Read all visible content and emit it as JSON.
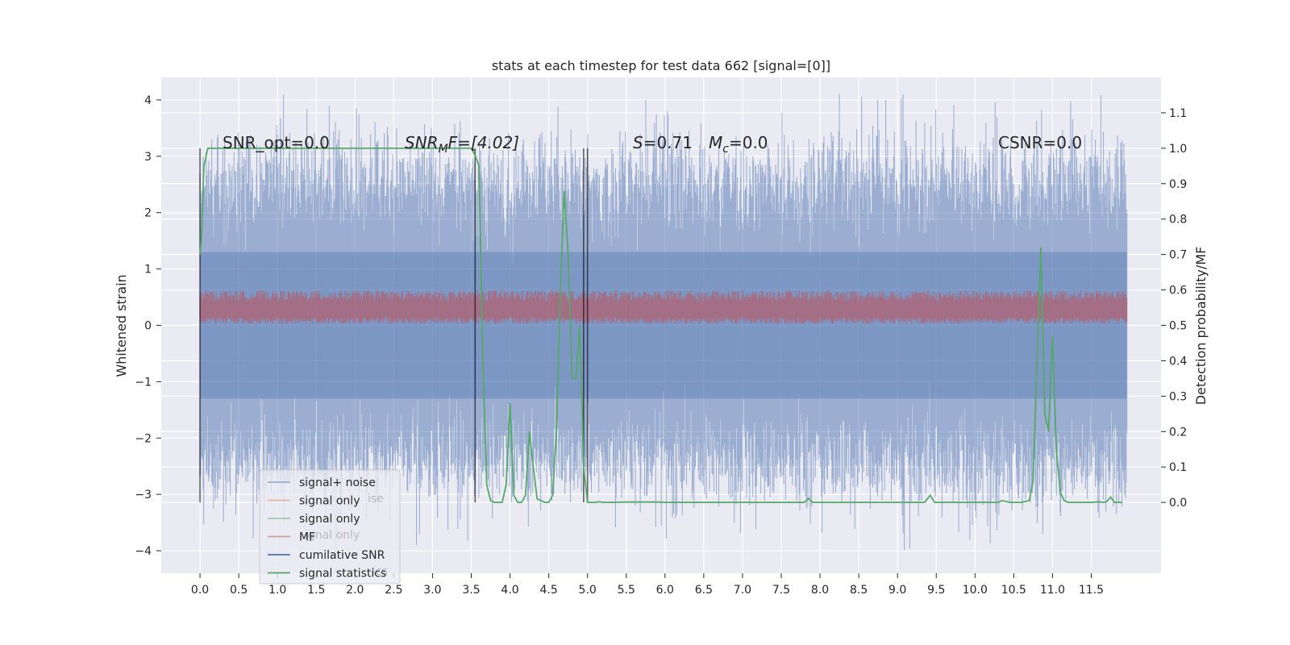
{
  "chart_data": {
    "type": "line",
    "title": "stats at each timestep for test data 662 [signal=[0]]",
    "xlabel": "",
    "ylabel": "Whitened strain",
    "ylabel_right": "Detection probability/MF",
    "xlim": [
      -0.5,
      12.4
    ],
    "ylim": [
      -4.4,
      4.4
    ],
    "ylim_right": [
      -0.2,
      1.2
    ],
    "grid": true,
    "legend_placement": "lower-left",
    "x_ticks": [
      "0.0",
      "0.5",
      "1.0",
      "1.5",
      "2.0",
      "2.5",
      "3.0",
      "3.5",
      "4.0",
      "4.5",
      "5.0",
      "5.5",
      "6.0",
      "6.5",
      "7.0",
      "7.5",
      "8.0",
      "8.5",
      "9.0",
      "9.5",
      "10.0",
      "10.5",
      "11.0",
      "11.5"
    ],
    "y_ticks": [
      "4",
      "3",
      "2",
      "1",
      "0",
      "−1",
      "−2",
      "−3",
      "−4"
    ],
    "y_ticks_right": [
      "1.1",
      "1.0",
      "0.9",
      "0.8",
      "0.7",
      "0.6",
      "0.5",
      "0.4",
      "0.3",
      "0.2",
      "0.1",
      "0.0"
    ],
    "annotations": {
      "snr_opt": "SNR_opt=0.0",
      "snr_mf_main": "SNR",
      "snr_mf_sub": "M",
      "snr_mf_rest": "F=[4.02]",
      "s_label": "S",
      "s_value": "=0.71",
      "mc_label": "M",
      "mc_sub": "c",
      "mc_value": "=0.0",
      "csnr": "CSNR=0.0"
    },
    "legend": [
      {
        "label": "signal+ noise",
        "color": "#4c72b0",
        "alpha": 0.5
      },
      {
        "label": "signal only",
        "color": "#dd8452",
        "alpha": 0.5
      },
      {
        "label": "signal only",
        "color": "#55a868",
        "alpha": 0.5
      },
      {
        "label": "MF",
        "color": "#c44e52",
        "alpha": 0.5
      },
      {
        "label": "cumilative SNR",
        "color": "#4c72b0",
        "alpha": 1
      },
      {
        "label": "signal statistics",
        "color": "#55a868",
        "alpha": 1
      }
    ],
    "legend_ghost_labels": [
      "ise",
      "ignal only",
      "ics"
    ],
    "series": [
      {
        "name": "signal+ noise",
        "axis": "left",
        "style": "noise",
        "color": "#4c72b0",
        "x_range": [
          0.0,
          11.96
        ],
        "envelope_upper": [
          2.5,
          2.6
        ],
        "envelope_lower": [
          -2.4,
          -2.5
        ],
        "peak_max": 4.1,
        "trough_min": -4.05
      },
      {
        "name": "MF",
        "axis": "left",
        "style": "band",
        "color": "#c44e52",
        "x_range": [
          0.0,
          11.96
        ],
        "center": 0.3,
        "spread": 0.25
      },
      {
        "name": "signal statistics",
        "axis": "right",
        "color": "#55a868",
        "x": [
          0.0,
          0.02,
          0.05,
          0.1,
          0.15,
          3.4,
          3.5,
          3.55,
          3.6,
          3.65,
          3.7,
          3.75,
          3.8,
          3.85,
          3.9,
          3.95,
          4.0,
          4.05,
          4.1,
          4.15,
          4.2,
          4.25,
          4.3,
          4.35,
          4.4,
          4.45,
          4.5,
          4.55,
          4.6,
          4.65,
          4.7,
          4.75,
          4.8,
          4.85,
          4.9,
          4.95,
          5.0,
          5.05,
          5.1,
          5.15,
          5.2,
          5.3,
          5.5,
          5.9,
          6.0,
          7.8,
          7.85,
          7.9,
          8.0,
          9.35,
          9.42,
          9.48,
          9.6,
          10.3,
          10.35,
          10.45,
          10.6,
          10.7,
          10.75,
          10.8,
          10.85,
          10.9,
          10.95,
          11.0,
          11.05,
          11.1,
          11.15,
          11.2,
          11.3,
          11.5,
          11.6,
          11.65,
          11.7,
          11.75,
          11.8,
          11.85,
          11.9
        ],
        "y": [
          0.7,
          0.75,
          0.95,
          1.0,
          1.0,
          1.0,
          1.0,
          0.98,
          0.95,
          0.4,
          0.05,
          0.005,
          0.0,
          0.0,
          0.0,
          0.05,
          0.28,
          0.02,
          0.0,
          0.0,
          0.02,
          0.2,
          0.1,
          0.01,
          0.005,
          0.0,
          0.0,
          0.02,
          0.2,
          0.6,
          0.88,
          0.7,
          0.35,
          0.35,
          0.5,
          0.1,
          0.0,
          0.0,
          0.0,
          0.002,
          0.0,
          0.0,
          0.001,
          0.001,
          0.0,
          0.0,
          0.012,
          0.0,
          0.0,
          0.0,
          0.02,
          0.0,
          0.0,
          0.0,
          0.005,
          0.0,
          0.0,
          0.005,
          0.06,
          0.4,
          0.72,
          0.25,
          0.2,
          0.47,
          0.15,
          0.03,
          0.005,
          0.0,
          0.0,
          0.0,
          0.002,
          0.0,
          0.002,
          0.015,
          0.0,
          0.0,
          0.0
        ]
      }
    ],
    "vertical_markers": [
      {
        "x": 0.0,
        "color": "#000000",
        "alpha": 0.6
      },
      {
        "x": 3.55,
        "color": "#000000",
        "alpha": 0.6
      },
      {
        "x": 4.95,
        "color": "#000000",
        "alpha": 0.6
      },
      {
        "x": 5.0,
        "color": "#000000",
        "alpha": 0.6
      }
    ],
    "vertical_marker_range": [
      0.0,
      1.0
    ]
  }
}
